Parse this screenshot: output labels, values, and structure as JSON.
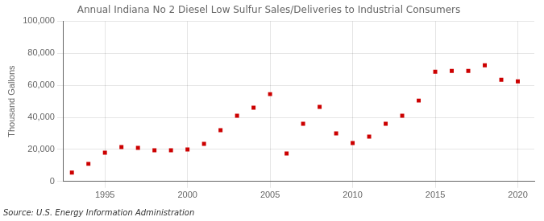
{
  "chart_data": {
    "type": "scatter",
    "title": "Annual Indiana No 2 Diesel Low Sulfur Sales/Deliveries to Industrial Consumers",
    "ylabel": "Thousand Gallons",
    "annotations": [
      "Source: U.S. Energy Information Administration"
    ],
    "x": [
      1993,
      1994,
      1995,
      1996,
      1997,
      1998,
      1999,
      2000,
      2001,
      2002,
      2003,
      2004,
      2005,
      2006,
      2007,
      2008,
      2009,
      2010,
      2011,
      2012,
      2013,
      2014,
      2015,
      2016,
      2017,
      2018,
      2019,
      2020
    ],
    "values": [
      5500,
      11000,
      18000,
      21500,
      21000,
      19500,
      19500,
      20000,
      23500,
      32000,
      41000,
      46000,
      54500,
      17500,
      36000,
      46500,
      30000,
      24000,
      28000,
      36000,
      41000,
      50500,
      68500,
      69000,
      69000,
      72500,
      63500,
      62500
    ],
    "color": "#cc0000",
    "marker": "square",
    "xlim": [
      1992.5,
      2021
    ],
    "xticks": [
      1995,
      2000,
      2005,
      2010,
      2015,
      2020
    ],
    "ylim": [
      0,
      100000
    ],
    "yticks": [
      0,
      {
        "value": 20000,
        "label": "20,000"
      },
      {
        "value": 40000,
        "label": "40,000"
      },
      {
        "value": 60000,
        "label": "60,000"
      },
      {
        "value": 80000,
        "label": "80,000"
      },
      {
        "value": 100000,
        "label": "100,000"
      }
    ],
    "grid": true
  }
}
